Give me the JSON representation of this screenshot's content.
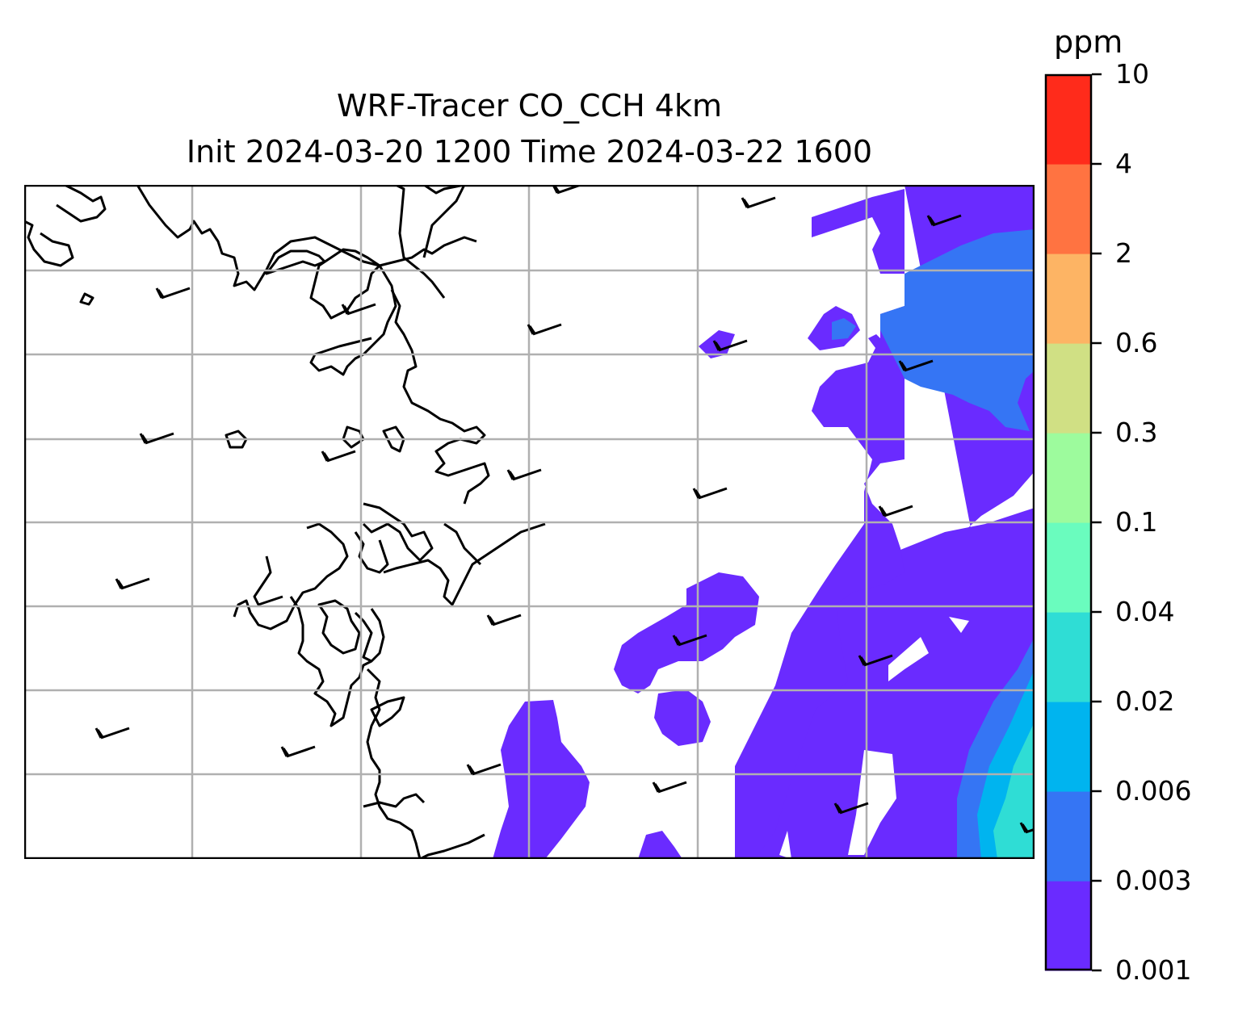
{
  "title": {
    "line1": "WRF-Tracer CO_CCH 4km",
    "line2": "Init 2024-03-20 1200 Time 2024-03-22 1600"
  },
  "colorbar": {
    "units": "ppm",
    "levels": [
      "0.001",
      "0.003",
      "0.006",
      "0.02",
      "0.04",
      "0.1",
      "0.3",
      "0.6",
      "2",
      "4",
      "10"
    ],
    "colors": [
      "#6a2bff",
      "#3575f4",
      "#00b4ef",
      "#2fddd5",
      "#6afcbe",
      "#9dfb9d",
      "#d0e084",
      "#fdb464",
      "#ff7341",
      "#ff2b1b"
    ]
  },
  "map": {
    "gridlines": true,
    "coastline_color": "#000000",
    "grid_color": "#b0b0b0",
    "wind_barbs": true
  }
}
